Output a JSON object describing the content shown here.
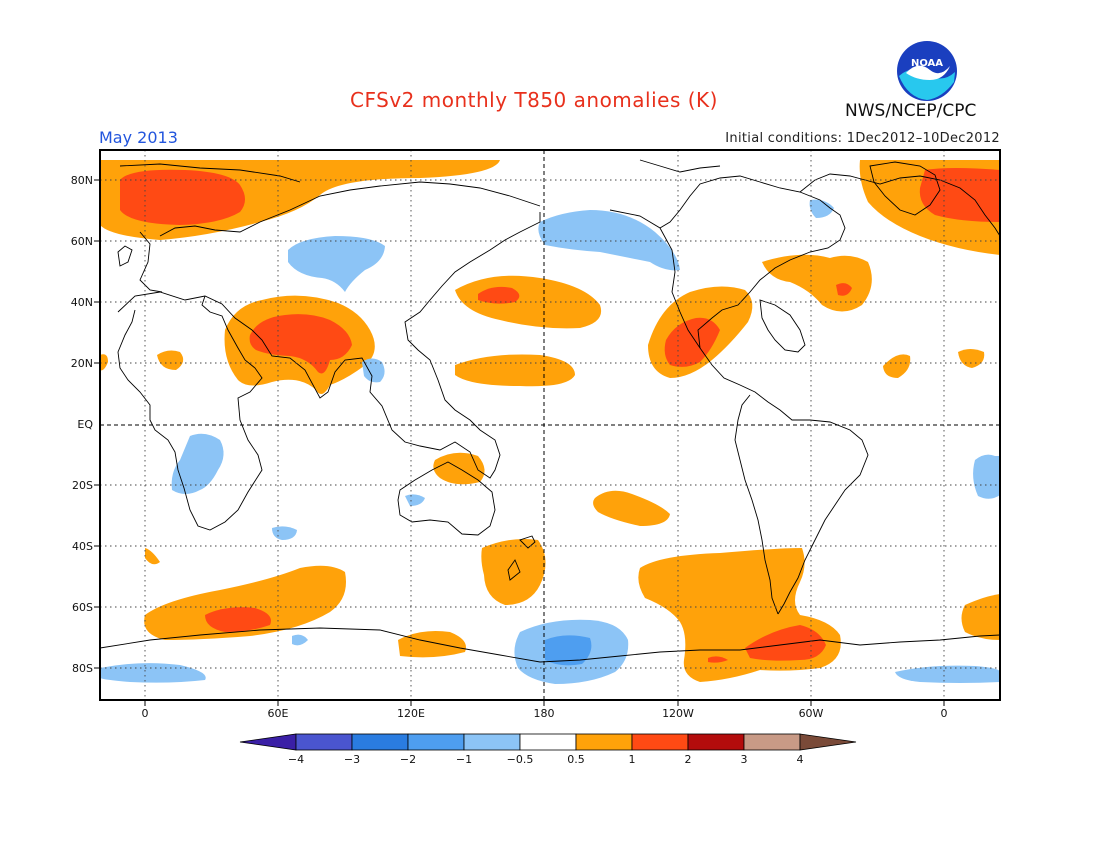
{
  "header": {
    "title": "CFSv2 monthly T850 anomalies (K)",
    "month": "May 2013",
    "initial_conditions": "Initial conditions: 1Dec2012–10Dec2012",
    "agency": "NWS/NCEP/CPC",
    "logo_text": "NOAA"
  },
  "map": {
    "lat_labels": [
      "80N",
      "60N",
      "40N",
      "20N",
      "EQ",
      "20S",
      "40S",
      "60S",
      "80S"
    ],
    "lon_labels": [
      "0",
      "60E",
      "120E",
      "180",
      "120W",
      "60W",
      "0"
    ]
  },
  "colorbar": {
    "labels": [
      "−4",
      "−3",
      "−2",
      "−1",
      "−0.5",
      "0.5",
      "1",
      "2",
      "3",
      "4"
    ],
    "colors": [
      "#3a1fa6",
      "#4a55cf",
      "#2a7ce0",
      "#4e9ef0",
      "#8cc4f6",
      "#ffffff",
      "#ffa20a",
      "#ff4a14",
      "#b30c0c",
      "#c89a86",
      "#7a4a38"
    ]
  },
  "colors": {
    "title": "#e8301c",
    "month": "#2255dd",
    "warm_1": "#ffa20a",
    "warm_2": "#ff4a14",
    "warm_3": "#b30c0c",
    "cold_1": "#8cc4f6",
    "cold_2": "#4e9ef0"
  }
}
